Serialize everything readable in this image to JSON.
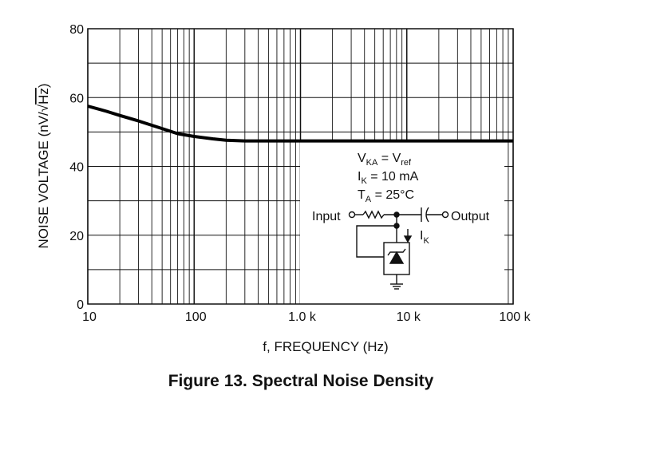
{
  "caption": "Figure 13. Spectral Noise Density",
  "chart_data": {
    "type": "line",
    "title": "Figure 13. Spectral Noise Density",
    "xlabel": "f, FREQUENCY (Hz)",
    "ylabel_main": "NOISE VOLTAGE (nV/",
    "ylabel_radical": "Hz",
    "ylabel_close": ")",
    "x_scale": "log",
    "xlim": [
      10,
      100000
    ],
    "ylim": [
      0,
      80
    ],
    "x_ticks": [
      {
        "value": 10,
        "label": "10"
      },
      {
        "value": 100,
        "label": "100"
      },
      {
        "value": 1000,
        "label": "1.0 k"
      },
      {
        "value": 10000,
        "label": "10 k"
      },
      {
        "value": 100000,
        "label": "100 k"
      }
    ],
    "y_ticks": [
      {
        "value": 0,
        "label": "0"
      },
      {
        "value": 20,
        "label": "20"
      },
      {
        "value": 40,
        "label": "40"
      },
      {
        "value": 60,
        "label": "60"
      },
      {
        "value": 80,
        "label": "80"
      }
    ],
    "y_minor_step": 10,
    "grid": true,
    "series": [
      {
        "x": [
          10,
          15,
          20,
          30,
          50,
          70,
          100,
          150,
          200,
          300,
          500,
          1000,
          10000,
          100000
        ],
        "y": [
          57.5,
          56.0,
          54.8,
          53.2,
          51.0,
          49.5,
          48.7,
          48.0,
          47.6,
          47.4,
          47.4,
          47.4,
          47.4,
          47.4
        ]
      }
    ],
    "inset": {
      "conditions": [
        {
          "base": "V",
          "sub": "KA",
          "rest": " = V",
          "sub2": "ref"
        },
        {
          "base": "I",
          "sub": "K",
          "rest": " = 10 mA",
          "sub2": ""
        },
        {
          "base": "T",
          "sub": "A",
          "rest": " = 25°C",
          "sub2": ""
        }
      ],
      "input_label": "Input",
      "output_label": "Output",
      "current_label": "I",
      "current_sub": "K"
    }
  }
}
